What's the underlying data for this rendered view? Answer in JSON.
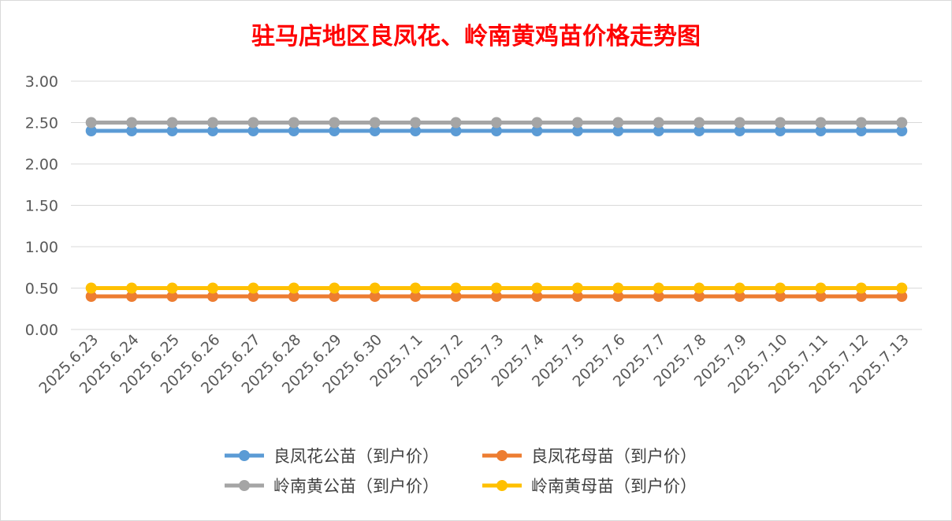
{
  "chart_data": {
    "type": "line",
    "title": "驻马店地区良凤花、岭南黄鸡苗价格走势图",
    "xlabel": "",
    "ylabel": "",
    "ylim": [
      0,
      3
    ],
    "yticks": [
      "0.00",
      "0.50",
      "1.00",
      "1.50",
      "2.00",
      "2.50",
      "3.00"
    ],
    "grid": true,
    "legend_position": "bottom",
    "categories": [
      "2025.6.23",
      "2025.6.24",
      "2025.6.25",
      "2025.6.26",
      "2025.6.27",
      "2025.6.28",
      "2025.6.29",
      "2025.6.30",
      "2025.7.1",
      "2025.7.2",
      "2025.7.3",
      "2025.7.4",
      "2025.7.5",
      "2025.7.6",
      "2025.7.7",
      "2025.7.8",
      "2025.7.9",
      "2025.7.10",
      "2025.7.11",
      "2025.7.12",
      "2025.7.13"
    ],
    "series": [
      {
        "name": "良凤花公苗（到户价）",
        "color": "#5b9bd5",
        "values": [
          2.4,
          2.4,
          2.4,
          2.4,
          2.4,
          2.4,
          2.4,
          2.4,
          2.4,
          2.4,
          2.4,
          2.4,
          2.4,
          2.4,
          2.4,
          2.4,
          2.4,
          2.4,
          2.4,
          2.4,
          2.4
        ]
      },
      {
        "name": "良凤花母苗（到户价）",
        "color": "#ed7d31",
        "values": [
          0.4,
          0.4,
          0.4,
          0.4,
          0.4,
          0.4,
          0.4,
          0.4,
          0.4,
          0.4,
          0.4,
          0.4,
          0.4,
          0.4,
          0.4,
          0.4,
          0.4,
          0.4,
          0.4,
          0.4,
          0.4
        ]
      },
      {
        "name": "岭南黄公苗（到户价）",
        "color": "#a5a5a5",
        "values": [
          2.5,
          2.5,
          2.5,
          2.5,
          2.5,
          2.5,
          2.5,
          2.5,
          2.5,
          2.5,
          2.5,
          2.5,
          2.5,
          2.5,
          2.5,
          2.5,
          2.5,
          2.5,
          2.5,
          2.5,
          2.5
        ]
      },
      {
        "name": "岭南黄母苗（到户价）",
        "color": "#ffc000",
        "values": [
          0.5,
          0.5,
          0.5,
          0.5,
          0.5,
          0.5,
          0.5,
          0.5,
          0.5,
          0.5,
          0.5,
          0.5,
          0.5,
          0.5,
          0.5,
          0.5,
          0.5,
          0.5,
          0.5,
          0.5,
          0.5
        ]
      }
    ]
  }
}
